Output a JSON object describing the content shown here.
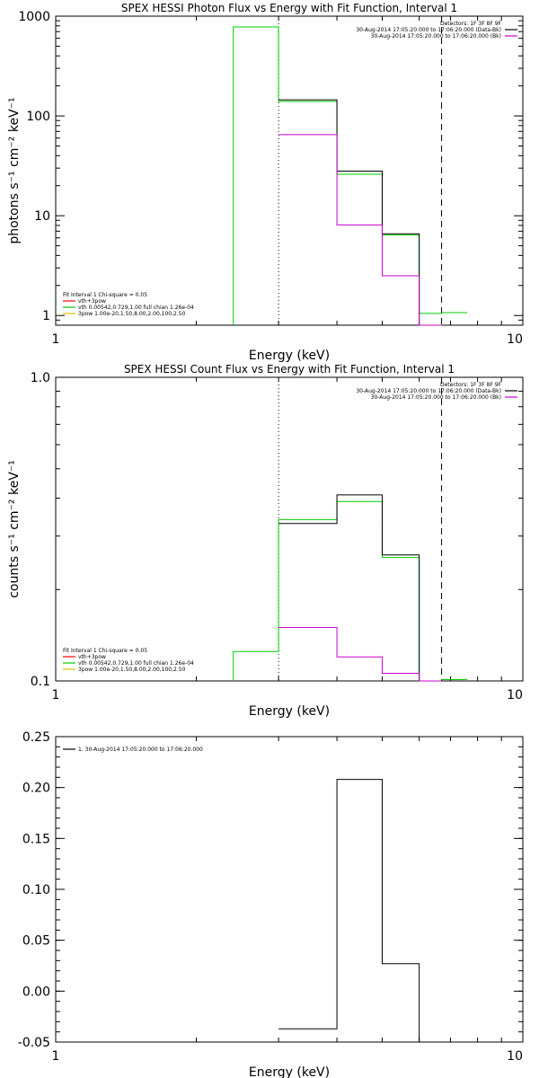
{
  "chart_data": [
    {
      "type": "line",
      "title": "SPEX HESSI Photon Flux vs Energy with Fit Function, Interval 1",
      "xlabel": "Energy (keV)",
      "ylabel": "photons s⁻¹ cm⁻² keV⁻¹",
      "xscale": "log",
      "yscale": "log",
      "xlim": [
        1,
        10
      ],
      "ylim": [
        0.8,
        1000
      ],
      "xticks": [
        {
          "v": 1,
          "label": "1"
        },
        {
          "v": 10,
          "label": "10"
        }
      ],
      "yticks": [
        {
          "v": 1,
          "label": "1"
        },
        {
          "v": 10,
          "label": "10"
        },
        {
          "v": 100,
          "label": "100"
        },
        {
          "v": 1000,
          "label": "1000"
        }
      ],
      "vlines": [
        {
          "x": 3.0,
          "style": "dotted"
        },
        {
          "x": 6.7,
          "style": "dashed"
        }
      ],
      "legend_top_right": [
        {
          "text": "Detectors: 1F 3F 8F 9F",
          "color": ""
        },
        {
          "text": "30-Aug-2014 17:05:20.000 to 17:06:20.000 (Data-Bk)",
          "color": "#000000"
        },
        {
          "text": "30-Aug-2014 17:05:20.000 to 17:06:20.000 (Bk)",
          "color": "#cc00cc"
        }
      ],
      "legend_bottom_left": [
        {
          "text": "Fit Interval  1    Chi-square = 0.05",
          "color": ""
        },
        {
          "text": "vth+3pow",
          "color": "#ff0000"
        },
        {
          "text": "vth 0.00542,0.729,1.00   full chian 1.26e-04",
          "color": "#00cc00"
        },
        {
          "text": "3pow 1.00e-20,1.50,8.00,2.00,100,2.50",
          "color": "#e0c000"
        }
      ],
      "series": [
        {
          "color": "#00cc00",
          "edges": [
            2.4,
            3.0,
            4.0,
            5.0,
            6.0,
            6.7
          ],
          "values": [
            780,
            140,
            26,
            6.4,
            1.05
          ],
          "extra_step": {
            "from": 6.7,
            "to": 7.6,
            "value": 1.07
          },
          "drop_left": true
        },
        {
          "color": "#000000",
          "edges": [
            3.0,
            4.0,
            5.0,
            6.0,
            6.7
          ],
          "values": [
            145,
            28,
            6.6,
            0.8
          ]
        },
        {
          "color": "#cc00cc",
          "edges": [
            3.0,
            4.0,
            5.0,
            6.0,
            6.7
          ],
          "values": [
            65,
            8.1,
            2.5,
            0.8
          ]
        }
      ]
    },
    {
      "type": "line",
      "title": "SPEX HESSI Count Flux vs Energy with Fit Function, Interval 1",
      "xlabel": "Energy (keV)",
      "ylabel": "counts s⁻¹ cm⁻² keV⁻¹",
      "xscale": "log",
      "yscale": "log",
      "xlim": [
        1,
        10
      ],
      "ylim": [
        0.1,
        1.0
      ],
      "xticks": [
        {
          "v": 1,
          "label": "1"
        },
        {
          "v": 10,
          "label": "10"
        }
      ],
      "yticks": [
        {
          "v": 0.1,
          "label": "0.1"
        },
        {
          "v": 1.0,
          "label": "1.0"
        }
      ],
      "vlines": [
        {
          "x": 3.0,
          "style": "dotted"
        },
        {
          "x": 6.7,
          "style": "dashed"
        }
      ],
      "legend_top_right": [
        {
          "text": "Detectors: 1F 3F 8F 9F",
          "color": ""
        },
        {
          "text": "30-Aug-2014 17:05:20.000 to 17:06:20.000 (Data-Bk)",
          "color": "#000000"
        },
        {
          "text": "30-Aug-2014 17:05:20.000 to 17:06:20.000 (Bk)",
          "color": "#cc00cc"
        }
      ],
      "legend_bottom_left": [
        {
          "text": "Fit Interval  1    Chi-square = 0.05",
          "color": ""
        },
        {
          "text": "vth+3pow",
          "color": "#ff0000"
        },
        {
          "text": "vth 0.00542,0.729,1.00   full chian 1.26e-04",
          "color": "#00cc00"
        },
        {
          "text": "3pow 1.00e-20,1.50,8.00,2.00,100,2.50",
          "color": "#e0c000"
        }
      ],
      "series": [
        {
          "color": "#00cc00",
          "edges": [
            2.4,
            3.0,
            4.0,
            5.0,
            6.0,
            6.7
          ],
          "values": [
            0.125,
            0.34,
            0.39,
            0.255,
            0.1
          ],
          "extra_step": {
            "from": 6.7,
            "to": 7.6,
            "value": 0.101
          },
          "drop_left": true
        },
        {
          "color": "#000000",
          "edges": [
            3.0,
            4.0,
            5.0,
            6.0,
            6.7
          ],
          "values": [
            0.33,
            0.41,
            0.26,
            0.1
          ]
        },
        {
          "color": "#cc00cc",
          "edges": [
            3.0,
            4.0,
            5.0,
            6.0,
            6.7
          ],
          "values": [
            0.15,
            0.12,
            0.106,
            0.1
          ]
        }
      ]
    },
    {
      "type": "line",
      "title": "",
      "xlabel": "Energy (keV)",
      "ylabel": "",
      "xscale": "log",
      "yscale": "linear",
      "xlim": [
        1,
        10
      ],
      "ylim": [
        -0.05,
        0.25
      ],
      "xticks": [
        {
          "v": 1,
          "label": "1"
        },
        {
          "v": 10,
          "label": "10"
        }
      ],
      "yticks": [
        {
          "v": -0.05,
          "label": "-0.05"
        },
        {
          "v": 0.0,
          "label": "0.00"
        },
        {
          "v": 0.05,
          "label": "0.05"
        },
        {
          "v": 0.1,
          "label": "0.10"
        },
        {
          "v": 0.15,
          "label": "0.15"
        },
        {
          "v": 0.2,
          "label": "0.20"
        },
        {
          "v": 0.25,
          "label": "0.25"
        }
      ],
      "vlines": [],
      "legend_top_left": [
        {
          "text": "1. 30-Aug-2014 17:05:20.000 to 17:06:20.000",
          "color": "#000000"
        }
      ],
      "series": [
        {
          "color": "#000000",
          "edges": [
            3.0,
            4.0,
            5.0,
            6.0,
            6.7
          ],
          "values": [
            -0.037,
            0.208,
            0.027,
            -0.05
          ]
        }
      ]
    }
  ]
}
